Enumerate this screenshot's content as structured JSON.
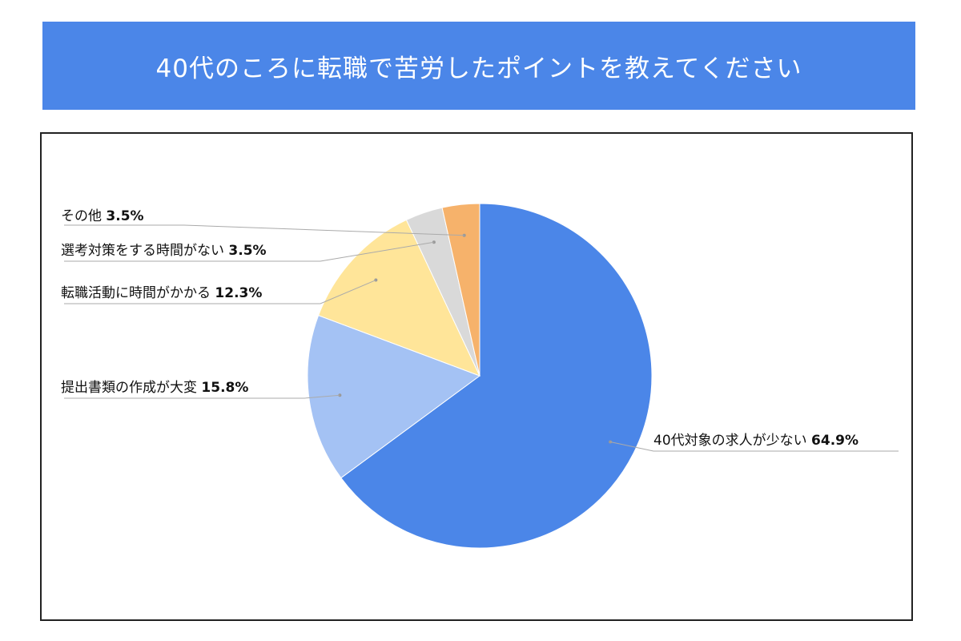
{
  "title": "40代のころに転職で苦労したポイントを教えてください",
  "chart_data": {
    "type": "pie",
    "title": "40代のころに転職で苦労したポイントを教えてください",
    "slices": [
      {
        "label": "40代対象の求人が少ない",
        "value": 64.9,
        "value_label": "64.9%",
        "color": "#4b86e8"
      },
      {
        "label": "提出書類の作成が大変",
        "value": 15.8,
        "value_label": "15.8%",
        "color": "#a4c2f4"
      },
      {
        "label": "転職活動に時間がかかる",
        "value": 12.3,
        "value_label": "12.3%",
        "color": "#ffe599"
      },
      {
        "label": "選考対策をする時間がない",
        "value": 3.5,
        "value_label": "3.5%",
        "color": "#d9d9d9"
      },
      {
        "label": "その他",
        "value": 3.5,
        "value_label": "3.5%",
        "color": "#f6b26b"
      }
    ]
  }
}
